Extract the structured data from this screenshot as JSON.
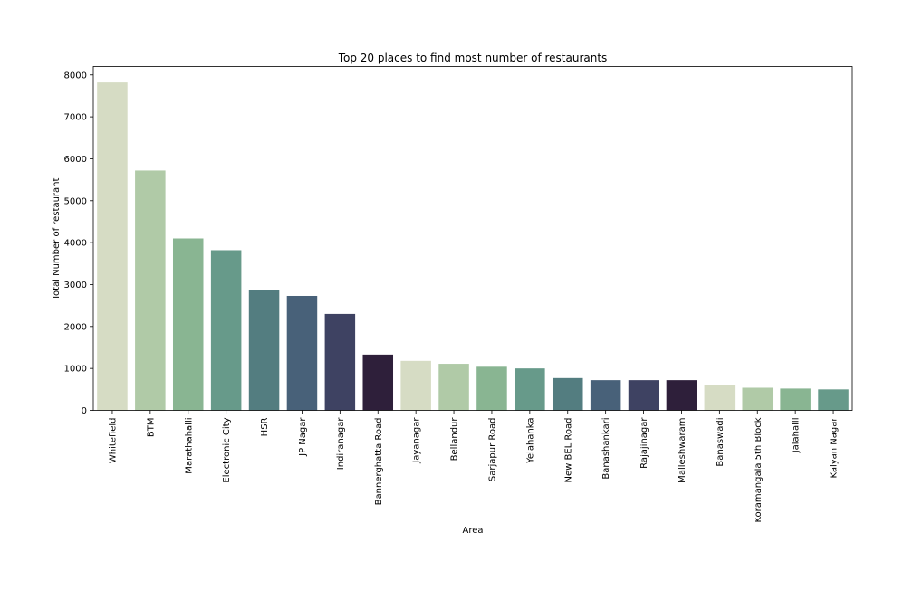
{
  "chart_data": {
    "type": "bar",
    "title": "Top 20 places to find most number of restaurants",
    "xlabel": "Area",
    "ylabel": "Total Number of restaurant",
    "ylim": [
      0,
      8200
    ],
    "yticks": [
      0,
      1000,
      2000,
      3000,
      4000,
      5000,
      6000,
      7000,
      8000
    ],
    "grid": false,
    "legend": "none",
    "categories": [
      "Whitefield",
      "BTM",
      "Marathahalli",
      "Electronic City",
      "HSR",
      "JP Nagar",
      "Indiranagar",
      "Bannerghatta Road",
      "Jayanagar",
      "Bellandur",
      "Sarjapur Road",
      "Yelahanka",
      "New BEL Road",
      "Banashankari",
      "Rajajinagar",
      "Malleshwaram",
      "Banaswadi",
      "Koramangala 5th Block",
      "Jalahalli",
      "Kalyan Nagar"
    ],
    "values": [
      7820,
      5720,
      4100,
      3820,
      2860,
      2730,
      2300,
      1330,
      1180,
      1110,
      1040,
      1000,
      770,
      720,
      720,
      720,
      610,
      540,
      520,
      500
    ],
    "colors": [
      "#d6dcc4",
      "#b0caa7",
      "#89b592",
      "#679a8a",
      "#537d80",
      "#486179",
      "#3e4262",
      "#2e1f3a",
      "#d6dcc4",
      "#b0caa7",
      "#89b592",
      "#679a8a",
      "#537d80",
      "#486179",
      "#3e4262",
      "#2e1f3a",
      "#d6dcc4",
      "#b0caa7",
      "#89b592",
      "#679a8a"
    ]
  }
}
